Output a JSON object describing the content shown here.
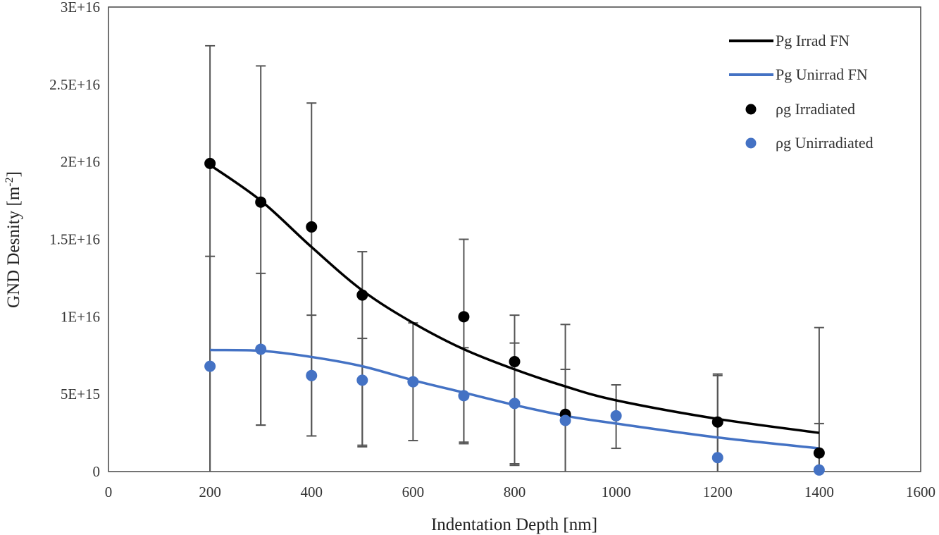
{
  "chart_data": {
    "type": "scatter",
    "title": "",
    "xlabel": "Indentation Depth [nm]",
    "ylabel_main": "GND Desnity [m",
    "ylabel_sup": "-2",
    "ylabel_end": "]",
    "xlim": [
      0,
      1600
    ],
    "ylim": [
      0,
      3e+16
    ],
    "x_ticks": [
      0,
      200,
      400,
      600,
      800,
      1000,
      1200,
      1400,
      1600
    ],
    "x_tick_labels": [
      "0",
      "200",
      "400",
      "600",
      "800",
      "1000",
      "1200",
      "1400",
      "1600"
    ],
    "y_ticks": [
      0,
      5000000000000000.0,
      1e+16,
      1.5e+16,
      2e+16,
      2.5e+16,
      3e+16
    ],
    "y_tick_labels": [
      "0",
      "5E+15",
      "1E+16",
      "1.5E+16",
      "2E+16",
      "2.5E+16",
      "3E+16"
    ],
    "grid": false,
    "legend_position": "top-right",
    "series": [
      {
        "name": "Pg Irrad FN",
        "kind": "line",
        "color": "#000000",
        "x": [
          200,
          300,
          400,
          500,
          600,
          700,
          800,
          900,
          1000,
          1200,
          1400
        ],
        "y": [
          1.98e+16,
          1.75e+16,
          1.45e+16,
          1.17e+16,
          9600000000000000.0,
          7900000000000000.0,
          6600000000000000.0,
          5500000000000000.0,
          4600000000000000.0,
          3400000000000000.0,
          2500000000000000.0
        ]
      },
      {
        "name": "Pg Unirrad FN",
        "kind": "line",
        "color": "#4472c4",
        "x": [
          200,
          300,
          400,
          500,
          600,
          700,
          800,
          900,
          1000,
          1200,
          1400
        ],
        "y": [
          7850000000000000.0,
          7800000000000000.0,
          7400000000000000.0,
          6800000000000000.0,
          5900000000000000.0,
          5100000000000000.0,
          4300000000000000.0,
          3600000000000000.0,
          3100000000000000.0,
          2200000000000000.0,
          1500000000000000.0
        ]
      },
      {
        "name": "ρg Irradiated",
        "kind": "scatter",
        "color": "#000000",
        "x": [
          200,
          300,
          400,
          500,
          700,
          800,
          900,
          1200,
          1400
        ],
        "y": [
          1.99e+16,
          1.74e+16,
          1.58e+16,
          1.14e+16,
          1e+16,
          7100000000000000.0,
          3700000000000000.0,
          3200000000000000.0,
          1200000000000000.0
        ],
        "error_low": [
          1.99e+16,
          1.44e+16,
          1.35e+16,
          9800000000000000.0,
          8200000000000000.0,
          6700000000000000.0,
          3700000000000000.0,
          3200000000000000.0,
          1200000000000000.0
        ],
        "error_high": [
          7600000000000000.0,
          8800000000000000.0,
          8000000000000000.0,
          2800000000000000.0,
          5000000000000000.0,
          3000000000000000.0,
          5800000000000000.0,
          3100000000000000.0,
          8100000000000000.0
        ]
      },
      {
        "name": "ρg Unirradiated",
        "kind": "scatter",
        "color": "#4472c4",
        "x": [
          200,
          300,
          400,
          500,
          600,
          700,
          800,
          900,
          1000,
          1200,
          1400
        ],
        "y": [
          6800000000000000.0,
          7900000000000000.0,
          6200000000000000.0,
          5900000000000000.0,
          5800000000000000.0,
          4900000000000000.0,
          4400000000000000.0,
          3300000000000000.0,
          3600000000000000.0,
          900000000000000.0,
          100000000000000.0
        ],
        "error_low": [
          6800000000000000.0,
          4900000000000000.0,
          3900000000000000.0,
          4200000000000000.0,
          3800000000000000.0,
          3000000000000000.0,
          3900000000000000.0,
          3300000000000000.0,
          2100000000000000.0,
          900000000000000.0,
          100000000000000.0
        ],
        "error_high": [
          7100000000000000.0,
          4900000000000000.0,
          3900000000000000.0,
          2700000000000000.0,
          3800000000000000.0,
          3100000000000000.0,
          3900000000000000.0,
          3300000000000000.0,
          2000000000000000.0,
          5300000000000000.0,
          3000000000000000.0
        ]
      }
    ]
  }
}
